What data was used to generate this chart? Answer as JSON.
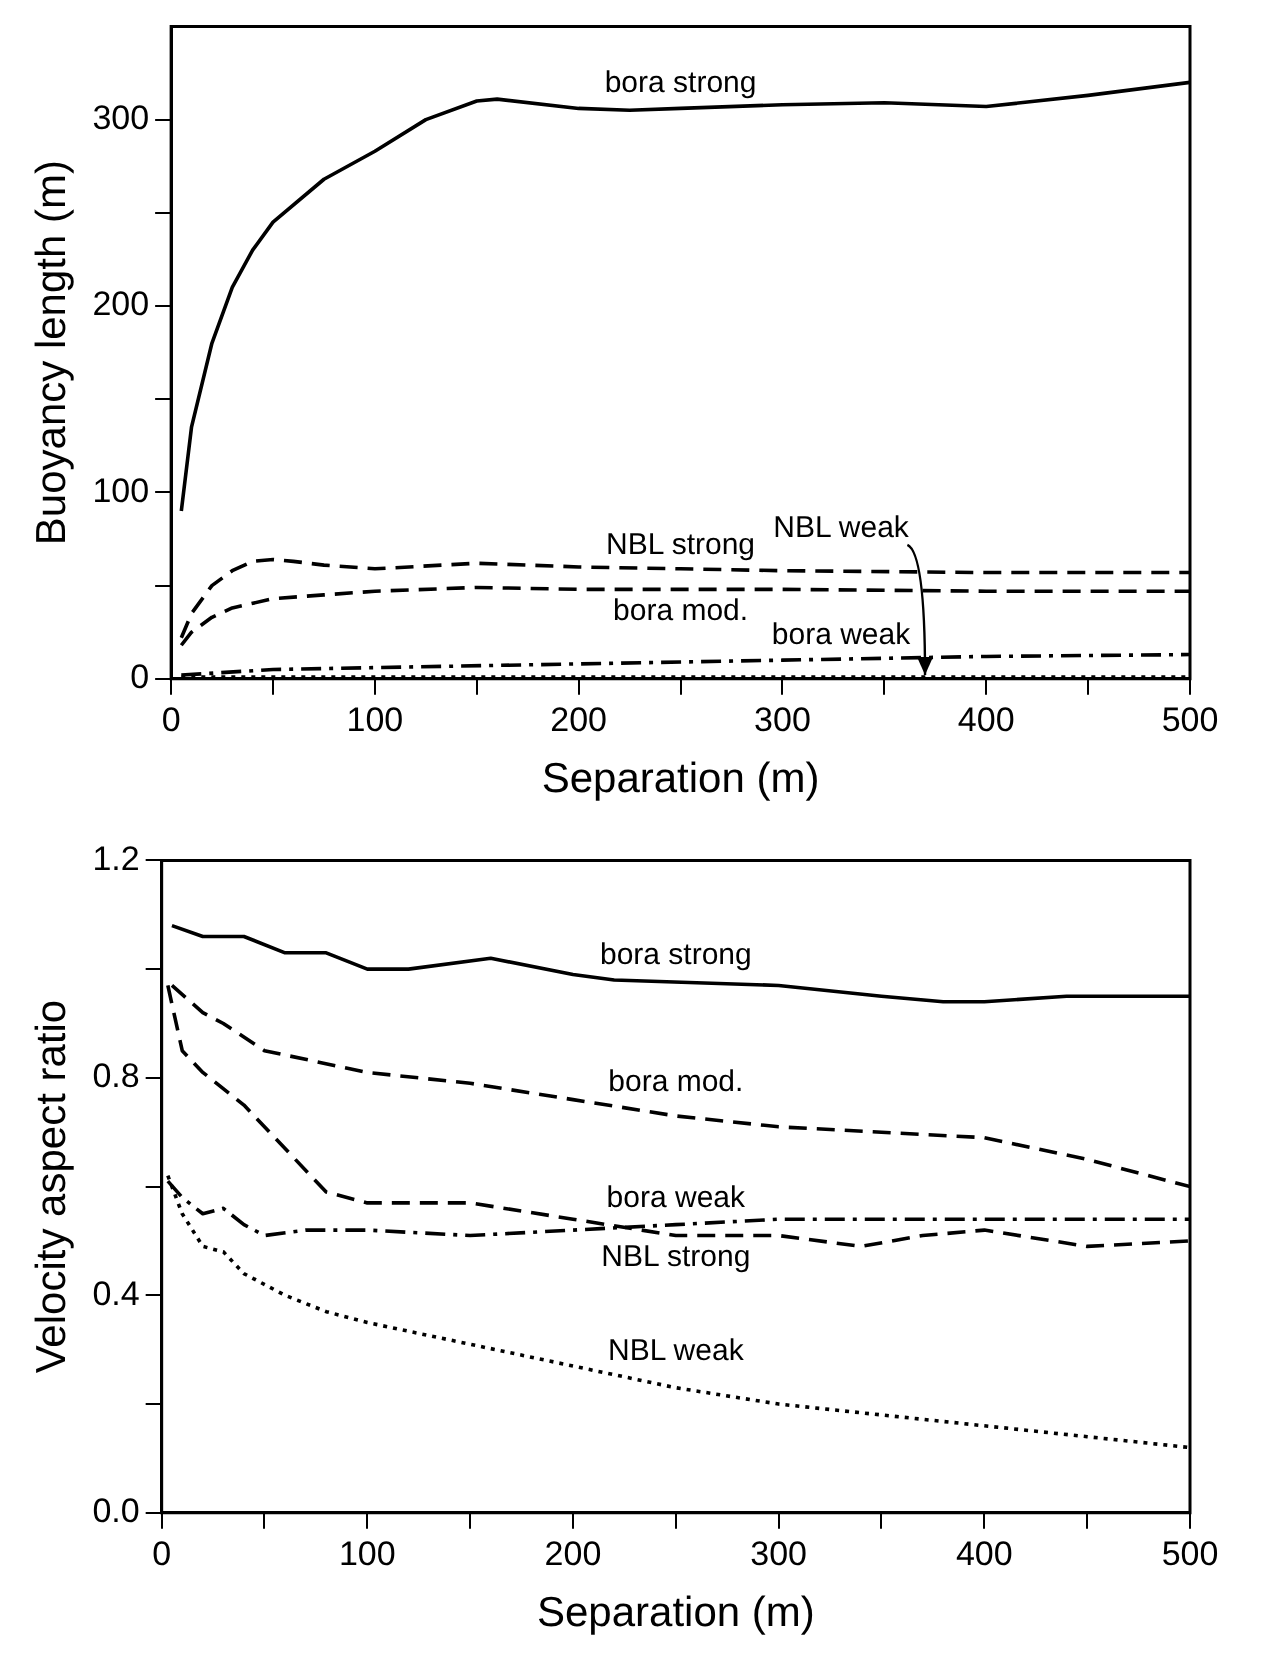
{
  "chart_data": [
    {
      "type": "line",
      "xlabel": "Separation (m)",
      "ylabel": "Buoyancy length (m)",
      "xlim": [
        0,
        500
      ],
      "ylim": [
        0,
        350
      ],
      "xticks": [
        0,
        {
          "value": 50,
          "label": null
        },
        100,
        {
          "value": 150,
          "label": null
        },
        200,
        {
          "value": 250,
          "label": null
        },
        300,
        {
          "value": 350,
          "label": null
        },
        400,
        {
          "value": 450,
          "label": null
        },
        500
      ],
      "yticks": [
        0,
        {
          "value": 50,
          "label": null
        },
        100,
        {
          "value": 150,
          "label": null
        },
        200,
        {
          "value": 250,
          "label": null
        },
        300
      ],
      "grid": false,
      "legend": false,
      "marker": "none",
      "series": [
        {
          "name": "bora strong",
          "color": "#000000",
          "line_style": "solid",
          "x": [
            5,
            10,
            20,
            30,
            40,
            50,
            75,
            100,
            125,
            150,
            160,
            200,
            225,
            250,
            300,
            350,
            400,
            450,
            500
          ],
          "values": [
            90,
            135,
            180,
            210,
            230,
            245,
            268,
            283,
            300,
            310,
            311,
            306,
            305,
            306,
            308,
            309,
            307,
            313,
            320
          ]
        },
        {
          "name": "NBL strong",
          "color": "#000000",
          "line_style": "dashed",
          "x": [
            5,
            10,
            20,
            30,
            40,
            50,
            60,
            75,
            100,
            150,
            200,
            250,
            300,
            400,
            500
          ],
          "values": [
            22,
            35,
            50,
            58,
            63,
            64,
            63,
            61,
            59,
            62,
            60,
            59,
            58,
            57,
            57
          ]
        },
        {
          "name": "bora mod.",
          "color": "#000000",
          "line_style": "dashed",
          "x": [
            5,
            10,
            20,
            30,
            50,
            75,
            100,
            150,
            200,
            300,
            400,
            500
          ],
          "values": [
            18,
            25,
            33,
            38,
            43,
            45,
            47,
            49,
            48,
            48,
            47,
            47
          ]
        },
        {
          "name": "bora weak",
          "color": "#000000",
          "line_style": "dashdot",
          "x": [
            5,
            50,
            100,
            200,
            300,
            400,
            500
          ],
          "values": [
            2,
            5,
            6,
            8,
            10,
            12,
            13
          ]
        },
        {
          "name": "NBL weak",
          "color": "#000000",
          "line_style": "dotted",
          "x": [
            5,
            100,
            200,
            300,
            400,
            500
          ],
          "values": [
            1,
            1,
            1,
            1,
            1,
            1
          ]
        }
      ]
    },
    {
      "type": "line",
      "xlabel": "Separation (m)",
      "ylabel": "Velocity aspect ratio",
      "xlim": [
        0,
        500
      ],
      "ylim": [
        0,
        1.2
      ],
      "xticks": [
        0,
        {
          "value": 50,
          "label": null
        },
        100,
        {
          "value": 150,
          "label": null
        },
        200,
        {
          "value": 250,
          "label": null
        },
        300,
        {
          "value": 350,
          "label": null
        },
        400,
        {
          "value": 450,
          "label": null
        },
        500
      ],
      "yticks": [
        {
          "value": 0,
          "label": "0.0"
        },
        {
          "value": 0.2,
          "label": null
        },
        0.4,
        {
          "value": 0.6,
          "label": null
        },
        0.8,
        {
          "value": 1,
          "label": null
        },
        1.2
      ],
      "grid": false,
      "legend": false,
      "marker": "none",
      "series": [
        {
          "name": "bora strong",
          "color": "#000000",
          "line_style": "solid",
          "x": [
            5,
            20,
            40,
            60,
            80,
            100,
            120,
            160,
            200,
            220,
            300,
            350,
            380,
            400,
            440,
            500
          ],
          "values": [
            1.08,
            1.06,
            1.06,
            1.03,
            1.03,
            1.0,
            1.0,
            1.02,
            0.99,
            0.98,
            0.97,
            0.95,
            0.94,
            0.94,
            0.95,
            0.95
          ]
        },
        {
          "name": "bora mod.",
          "color": "#000000",
          "line_style": "dashed",
          "x": [
            5,
            20,
            30,
            50,
            75,
            100,
            150,
            200,
            250,
            300,
            350,
            400,
            450,
            500
          ],
          "values": [
            0.97,
            0.92,
            0.9,
            0.85,
            0.83,
            0.81,
            0.79,
            0.76,
            0.73,
            0.71,
            0.7,
            0.69,
            0.65,
            0.6
          ]
        },
        {
          "name": "NBL strong",
          "color": "#000000",
          "line_style": "dashed",
          "x": [
            3,
            10,
            20,
            40,
            60,
            80,
            100,
            150,
            200,
            250,
            300,
            340,
            370,
            400,
            450,
            500
          ],
          "values": [
            0.97,
            0.85,
            0.81,
            0.75,
            0.67,
            0.59,
            0.57,
            0.57,
            0.54,
            0.51,
            0.51,
            0.49,
            0.51,
            0.52,
            0.49,
            0.5
          ]
        },
        {
          "name": "bora weak",
          "color": "#000000",
          "line_style": "dashdot",
          "x": [
            3,
            10,
            20,
            30,
            40,
            50,
            70,
            100,
            150,
            200,
            250,
            300,
            400,
            500
          ],
          "values": [
            0.61,
            0.58,
            0.55,
            0.56,
            0.53,
            0.51,
            0.52,
            0.52,
            0.51,
            0.52,
            0.53,
            0.54,
            0.54,
            0.54
          ]
        },
        {
          "name": "NBL weak",
          "color": "#000000",
          "line_style": "dotted",
          "x": [
            3,
            10,
            20,
            30,
            40,
            60,
            80,
            100,
            150,
            200,
            250,
            300,
            350,
            400,
            450,
            500
          ],
          "values": [
            0.62,
            0.55,
            0.49,
            0.48,
            0.44,
            0.4,
            0.37,
            0.35,
            0.31,
            0.27,
            0.23,
            0.2,
            0.18,
            0.16,
            0.14,
            0.12
          ]
        }
      ]
    }
  ]
}
